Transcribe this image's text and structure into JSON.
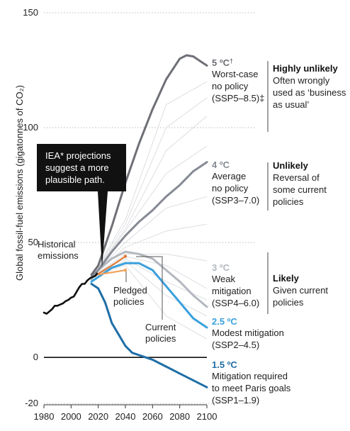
{
  "chart_data": {
    "type": "line",
    "ylabel": "Global fossil-fuel emissions (gigatonnes of CO₂)",
    "xlim": [
      1980,
      2100
    ],
    "ylim": [
      -20,
      150
    ],
    "xticks": [
      1980,
      2000,
      2020,
      2040,
      2060,
      2080,
      2100
    ],
    "yticks": [
      150,
      100,
      50,
      0,
      -20
    ],
    "zero_line": true,
    "colors": {
      "historical": "#111111",
      "ssp585": "#6e7076",
      "ssp370": "#868a94",
      "ssp460": "#b4b8bf",
      "ssp245": "#3aa0dd",
      "ssp119": "#1f6ea6",
      "pledged": "#f0a35c",
      "current": "#e07b38",
      "background": "#d9dbdf"
    },
    "series": [
      {
        "key": "historical",
        "x": [
          1980,
          1982,
          1984,
          1986,
          1988,
          1990,
          1992,
          1994,
          1996,
          1998,
          2000,
          2002,
          2004,
          2006,
          2008,
          2010,
          2012,
          2014,
          2016,
          2018,
          2019
        ],
        "y": [
          19.5,
          19,
          20,
          21,
          22.5,
          22.5,
          23,
          23.5,
          24.5,
          25,
          26,
          26.5,
          28.5,
          30.5,
          32,
          32,
          33.5,
          34.5,
          35,
          35.5,
          36.5
        ]
      },
      {
        "key": "ssp585",
        "x": [
          2015,
          2020,
          2030,
          2040,
          2050,
          2060,
          2070,
          2080,
          2085,
          2090,
          2095,
          2100
        ],
        "y": [
          36,
          40,
          57,
          76,
          93,
          108,
          121,
          130,
          131.5,
          131,
          129,
          127
        ]
      },
      {
        "key": "ssp370",
        "x": [
          2015,
          2020,
          2030,
          2040,
          2050,
          2060,
          2070,
          2080,
          2090,
          2100
        ],
        "y": [
          35,
          38,
          46,
          53,
          59,
          64,
          70,
          75,
          81,
          85
        ]
      },
      {
        "key": "ssp460",
        "x": [
          2015,
          2020,
          2030,
          2040,
          2050,
          2060,
          2070,
          2080,
          2090,
          2100
        ],
        "y": [
          34,
          38,
          43,
          46,
          45,
          43,
          38,
          33,
          27,
          22
        ]
      },
      {
        "key": "ssp245",
        "x": [
          2015,
          2020,
          2030,
          2040,
          2050,
          2060,
          2070,
          2080,
          2090,
          2100
        ],
        "y": [
          33,
          35,
          39,
          41,
          41,
          38,
          31,
          24,
          17,
          13
        ]
      },
      {
        "key": "ssp119",
        "x": [
          2015,
          2020,
          2025,
          2030,
          2035,
          2040,
          2045,
          2050,
          2060,
          2070,
          2080,
          2090,
          2100
        ],
        "y": [
          32,
          30,
          24,
          15,
          10,
          5,
          2,
          1,
          -1,
          -4,
          -7,
          -10,
          -13
        ]
      },
      {
        "key": "current",
        "x": [
          2019,
          2030,
          2040
        ],
        "y": [
          36,
          40,
          44
        ]
      },
      {
        "key": "pledged",
        "x": [
          2019,
          2030,
          2040
        ],
        "y": [
          36,
          37,
          38
        ]
      }
    ],
    "background_lines": [
      [
        [
          2015,
          35
        ],
        [
          2040,
          60
        ],
        [
          2070,
          110
        ],
        [
          2100,
          120
        ]
      ],
      [
        [
          2015,
          35
        ],
        [
          2040,
          58
        ],
        [
          2070,
          100
        ],
        [
          2100,
          113
        ]
      ],
      [
        [
          2015,
          35
        ],
        [
          2040,
          56
        ],
        [
          2070,
          90
        ],
        [
          2100,
          105
        ]
      ],
      [
        [
          2015,
          35
        ],
        [
          2040,
          55
        ],
        [
          2070,
          80
        ],
        [
          2100,
          92
        ]
      ],
      [
        [
          2015,
          35
        ],
        [
          2040,
          50
        ],
        [
          2070,
          65
        ],
        [
          2100,
          70
        ]
      ],
      [
        [
          2015,
          35
        ],
        [
          2040,
          48
        ],
        [
          2070,
          55
        ],
        [
          2100,
          58
        ]
      ],
      [
        [
          2015,
          35
        ],
        [
          2040,
          45
        ],
        [
          2070,
          45
        ],
        [
          2100,
          42
        ]
      ],
      [
        [
          2015,
          35
        ],
        [
          2040,
          44
        ],
        [
          2070,
          40
        ],
        [
          2100,
          30
        ]
      ],
      [
        [
          2015,
          35
        ],
        [
          2040,
          43
        ],
        [
          2070,
          33
        ],
        [
          2100,
          25
        ]
      ],
      [
        [
          2015,
          35
        ],
        [
          2040,
          42
        ],
        [
          2070,
          27
        ],
        [
          2100,
          18
        ]
      ],
      [
        [
          2015,
          35
        ],
        [
          2040,
          40
        ],
        [
          2070,
          18
        ],
        [
          2100,
          8
        ]
      ]
    ],
    "scenarios": [
      {
        "temp": "5 ºC",
        "dagger": "†",
        "lines": [
          "Worst-case",
          "no policy",
          "(SSP5–8.5)‡"
        ],
        "color": "#6e7076"
      },
      {
        "temp": "4 ºC",
        "dagger": "",
        "lines": [
          "Average",
          "no policy",
          "(SSP3–7.0)"
        ],
        "color": "#868a94"
      },
      {
        "temp": "3 ºC",
        "dagger": "",
        "lines": [
          "Weak",
          "mitigation",
          "(SSP4–6.0)"
        ],
        "color": "#b4b8bf"
      },
      {
        "temp": "2.5 ºC",
        "dagger": "",
        "lines": [
          "Modest mitigation",
          "(SSP2–4.5)"
        ],
        "color": "#3aa0dd"
      },
      {
        "temp": "1.5 ºC",
        "dagger": "",
        "lines": [
          "Mitigation required",
          "to meet Paris goals",
          "(SSP1–1.9)"
        ],
        "color": "#1f6ea6"
      }
    ],
    "likelihood": [
      {
        "head": "Highly unlikely",
        "lines": [
          "Often wrongly",
          "used as ‘business",
          "as usual’"
        ]
      },
      {
        "head": "Unlikely",
        "lines": [
          "Reversal of",
          "some current",
          "policies"
        ]
      },
      {
        "head": "Likely",
        "lines": [
          "Given current",
          "policies"
        ]
      }
    ],
    "annotations": {
      "callout": [
        "IEA* projections",
        "suggest a more",
        "plausible path."
      ],
      "historical": [
        "Historical",
        "emissions"
      ],
      "pledged": [
        "Pledged",
        "policies"
      ],
      "current": [
        "Current",
        "policies"
      ]
    }
  }
}
